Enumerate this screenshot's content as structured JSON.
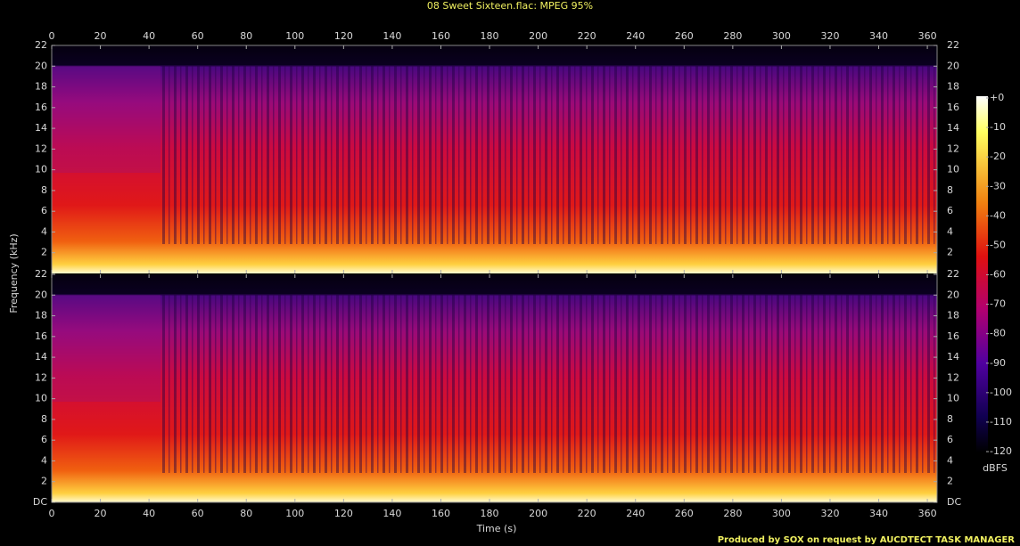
{
  "chart_data": {
    "type": "spectrogram",
    "title": "08 Sweet Sixteen.flac: MPEG 95%",
    "x_label": "Time (s)",
    "y_label": "Frequency (kHz)",
    "xlim": [
      0,
      364
    ],
    "xticks": [
      0,
      20,
      40,
      60,
      80,
      100,
      120,
      140,
      160,
      180,
      200,
      220,
      240,
      260,
      280,
      300,
      320,
      340,
      360
    ],
    "channels": [
      {
        "ylim": [
          0,
          22
        ],
        "yticks": [
          2,
          4,
          6,
          8,
          10,
          12,
          14,
          16,
          18,
          20,
          22
        ]
      },
      {
        "ylim": [
          0,
          22
        ],
        "yticks": [
          {
            "value": 0,
            "label": "DC"
          },
          2,
          4,
          6,
          8,
          10,
          12,
          14,
          16,
          18,
          20,
          22
        ]
      }
    ],
    "colorbar": {
      "label": "dBFS",
      "lim": [
        -120,
        0
      ],
      "ticks": [
        {
          "value": 0,
          "label": "+0"
        },
        -10,
        -20,
        -30,
        -40,
        -50,
        -60,
        -70,
        -80,
        -90,
        -100,
        -110,
        -120
      ]
    }
  },
  "footer": "Produced by SOX on request by AUCDTECT TASK MANAGER"
}
